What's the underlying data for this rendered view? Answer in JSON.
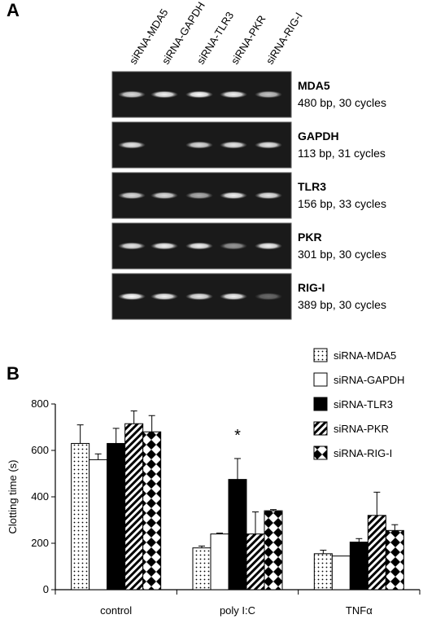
{
  "panel_a": {
    "label": "A",
    "lanes": [
      "siRNA-MDA5",
      "siRNA-GAPDH",
      "siRNA-TLR3",
      "siRNA-PKR",
      "siRNA-RIG-I"
    ],
    "gels": [
      {
        "name": "MDA5",
        "detail": "480 bp, 30 cycles",
        "band_intensity": [
          0.85,
          0.95,
          1.0,
          0.95,
          0.75
        ]
      },
      {
        "name": "GAPDH",
        "detail": "113 bp, 31 cycles",
        "band_intensity": [
          0.9,
          0.0,
          0.85,
          0.9,
          0.9
        ]
      },
      {
        "name": "TLR3",
        "detail": "156 bp, 33 cycles",
        "band_intensity": [
          0.85,
          0.85,
          0.65,
          0.95,
          0.9
        ]
      },
      {
        "name": "PKR",
        "detail": "301 bp, 30 cycles",
        "band_intensity": [
          0.9,
          0.95,
          0.95,
          0.55,
          0.95
        ]
      },
      {
        "name": "RIG-I",
        "detail": "389 bp, 30 cycles",
        "band_intensity": [
          1.0,
          0.95,
          0.9,
          0.95,
          0.35
        ]
      }
    ]
  },
  "panel_b": {
    "label": "B",
    "significance_marker": "*"
  },
  "chart_data": {
    "type": "bar",
    "title": "",
    "xlabel": "",
    "ylabel": "Clotting time (s)",
    "ylim": [
      0,
      800
    ],
    "yticks": [
      0,
      200,
      400,
      600,
      800
    ],
    "categories": [
      "control",
      "poly I:C",
      "TNFα"
    ],
    "legend_position": "top-right",
    "series": [
      {
        "name": "siRNA-MDA5",
        "pattern": "dots",
        "values": [
          630,
          180,
          155
        ],
        "errors": [
          80,
          8,
          15
        ]
      },
      {
        "name": "siRNA-GAPDH",
        "pattern": "white",
        "values": [
          560,
          240,
          145
        ],
        "errors": [
          25,
          4,
          0
        ]
      },
      {
        "name": "siRNA-TLR3",
        "pattern": "black",
        "values": [
          630,
          475,
          205
        ],
        "errors": [
          65,
          90,
          15
        ]
      },
      {
        "name": "siRNA-PKR",
        "pattern": "diagonal",
        "values": [
          715,
          240,
          320
        ],
        "errors": [
          55,
          95,
          100
        ]
      },
      {
        "name": "siRNA-RIG-I",
        "pattern": "diamonds",
        "values": [
          680,
          340,
          255
        ],
        "errors": [
          70,
          5,
          25
        ]
      }
    ],
    "annotations": [
      {
        "category": "poly I:C",
        "series": "siRNA-TLR3",
        "text": "*"
      }
    ]
  }
}
